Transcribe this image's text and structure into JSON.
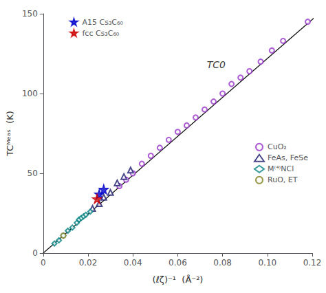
{
  "chart_data": {
    "type": "scatter",
    "x_label": "(ℓζ)⁻¹  (Å⁻²)",
    "y_label": "TCᴹᵉᵃˢ  (K)",
    "xlim": [
      0,
      0.12
    ],
    "ylim": [
      0,
      150
    ],
    "xticks": [
      0,
      0.02,
      0.04,
      0.06,
      0.08,
      {
        "value": 0.1,
        "label": "0.10"
      },
      0.12
    ],
    "yticks": [
      0,
      50,
      100,
      150
    ],
    "grid": false,
    "annotations": [
      {
        "text": "TC0",
        "x": 0.073,
        "y": 115
      }
    ],
    "series": [
      {
        "type": "line",
        "color": "#111111",
        "line_style": "solid",
        "x": [
          0,
          0.122
        ],
        "y": [
          0,
          148.84
        ]
      },
      {
        "name": "CuO₂",
        "type": "scatter",
        "color": "#9933cc",
        "marker": "open_circle",
        "legend": "center right",
        "x": [
          0.034,
          0.037,
          0.04,
          0.044,
          0.048,
          0.052,
          0.056,
          0.06,
          0.064,
          0.068,
          0.072,
          0.076,
          0.08,
          0.084,
          0.088,
          0.092,
          0.097,
          0.102,
          0.107,
          0.118
        ],
        "y": [
          42,
          46,
          50,
          56,
          61,
          66,
          71,
          76,
          80,
          85,
          90,
          95,
          100,
          106,
          110,
          114,
          120,
          127,
          133,
          145
        ]
      },
      {
        "name": "FeAs, FeSe",
        "type": "scatter",
        "color": "#1a1a6e",
        "marker": "open_triangle",
        "legend": "center right",
        "x": [
          0.022,
          0.025,
          0.027,
          0.03,
          0.033,
          0.036,
          0.039
        ],
        "y": [
          28,
          31,
          35,
          38,
          44,
          48,
          52
        ]
      },
      {
        "name": "M⁽⁴⁾NCl",
        "type": "scatter",
        "color": "#008080",
        "marker": "open_diamond",
        "legend": "center right",
        "x": [
          0.005,
          0.007,
          0.009,
          0.011,
          0.013,
          0.015,
          0.016,
          0.017,
          0.018,
          0.019,
          0.021
        ],
        "y": [
          6,
          8,
          11,
          14,
          16,
          19,
          21,
          22,
          23,
          24,
          26
        ]
      },
      {
        "name": "RuO, ET",
        "type": "scatter",
        "color": "#808020",
        "marker": "open_circle",
        "legend": "center right",
        "x": [
          0.009
        ],
        "y": [
          11
        ]
      },
      {
        "name": "A15 Cs₃C₆₀",
        "type": "scatter",
        "color": "#0000cc",
        "marker": "star",
        "legend": "upper left",
        "x": [
          0.025,
          0.027
        ],
        "y": [
          37,
          40
        ]
      },
      {
        "name": "fcc Cs₃C₆₀",
        "type": "scatter",
        "color": "#cc0000",
        "marker": "star",
        "legend": "upper left",
        "x": [
          0.024
        ],
        "y": [
          34
        ]
      }
    ]
  }
}
